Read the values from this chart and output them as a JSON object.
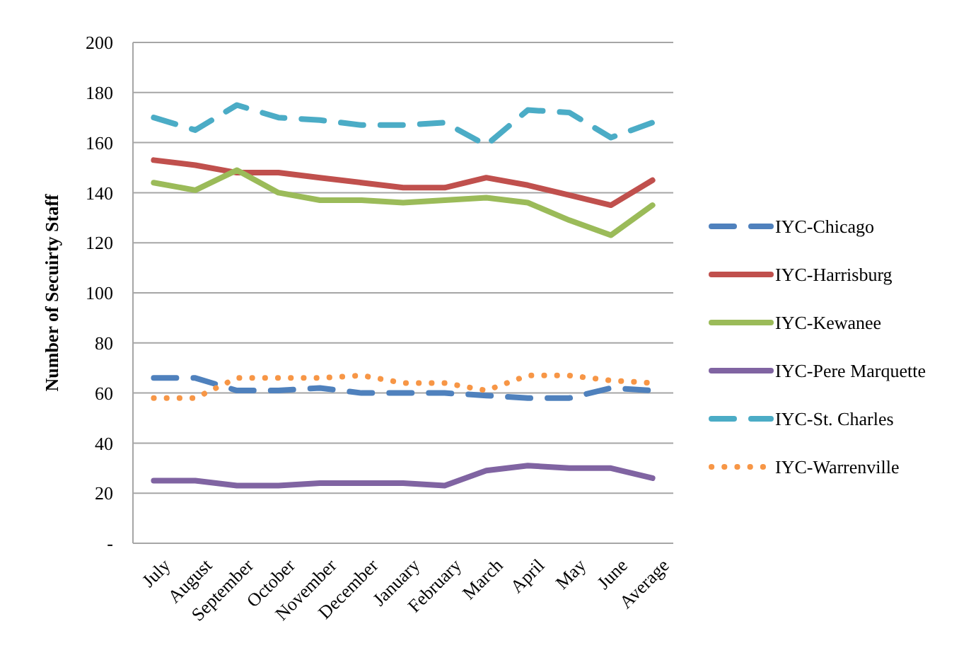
{
  "chart_data": {
    "type": "line",
    "ylabel": "Number of Secuirty Staff",
    "categories": [
      "July",
      "August",
      "September",
      "October",
      "November",
      "December",
      "January",
      "February",
      "March",
      "April",
      "May",
      "June",
      "Average"
    ],
    "series": [
      {
        "name": "IYC-Chicago",
        "color": "#4f81bd",
        "line_style": "dashed",
        "values": [
          66,
          66,
          61,
          61,
          62,
          60,
          60,
          60,
          59,
          58,
          58,
          62,
          61
        ]
      },
      {
        "name": "IYC-Harrisburg",
        "color": "#c0504d",
        "line_style": "solid",
        "values": [
          153,
          151,
          148,
          148,
          146,
          144,
          142,
          142,
          146,
          143,
          139,
          135,
          145
        ]
      },
      {
        "name": "IYC-Kewanee",
        "color": "#9bbb59",
        "line_style": "solid",
        "values": [
          144,
          141,
          149,
          140,
          137,
          137,
          136,
          137,
          138,
          136,
          129,
          123,
          135
        ]
      },
      {
        "name": "IYC-Pere Marquette",
        "color": "#8064a2",
        "line_style": "solid",
        "values": [
          25,
          25,
          23,
          23,
          24,
          24,
          24,
          23,
          29,
          31,
          30,
          30,
          26
        ]
      },
      {
        "name": "IYC-St. Charles",
        "color": "#4bacc6",
        "line_style": "dashed",
        "values": [
          170,
          165,
          175,
          170,
          169,
          167,
          167,
          168,
          159,
          173,
          172,
          162,
          168
        ]
      },
      {
        "name": "IYC-Warrenville",
        "color": "#f79646",
        "line_style": "dotted",
        "values": [
          58,
          58,
          66,
          66,
          66,
          67,
          64,
          64,
          61,
          67,
          67,
          65,
          64
        ]
      }
    ],
    "ylim": [
      0,
      200
    ],
    "yticks": [
      {
        "value": 0,
        "label": "-"
      },
      20,
      40,
      60,
      80,
      100,
      120,
      140,
      160,
      180,
      200
    ],
    "grid": "y",
    "legend": "right",
    "marker": "none"
  }
}
